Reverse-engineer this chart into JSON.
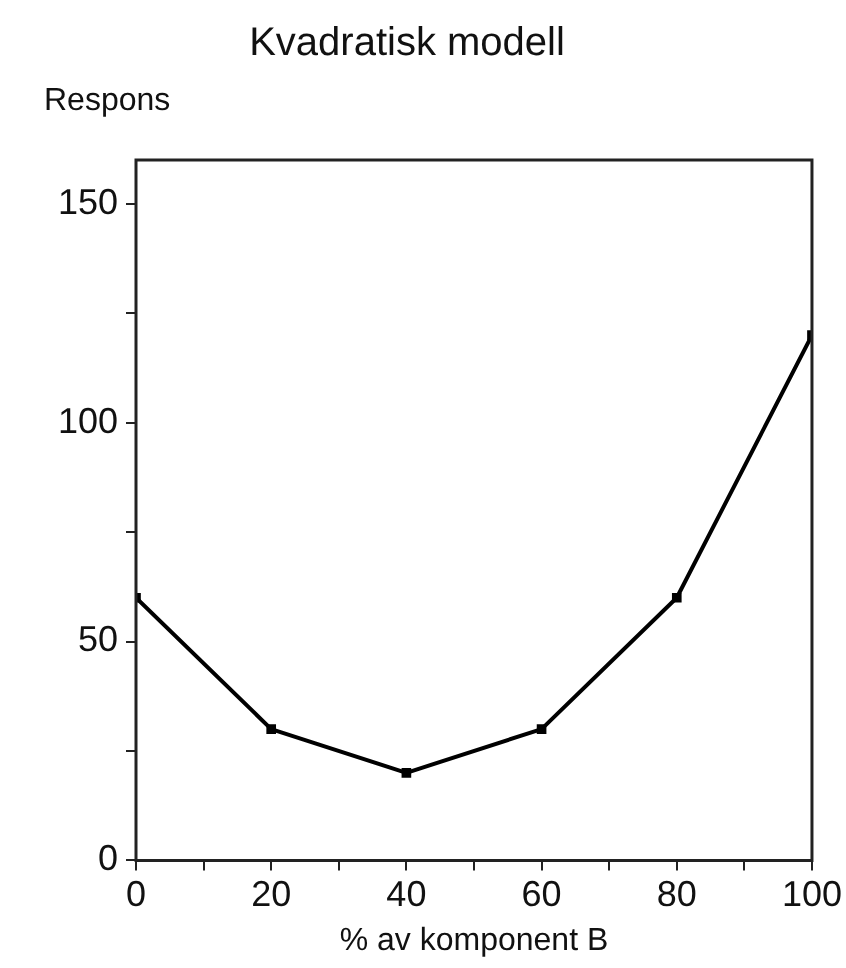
{
  "chart_data": {
    "type": "line",
    "title": "Kvadratisk modell",
    "xlabel": "% av komponent B",
    "ylabel": "Respons",
    "x": [
      0,
      20,
      40,
      60,
      80,
      100
    ],
    "series": [
      {
        "color": "#000000",
        "values": [
          60,
          30,
          20,
          30,
          60,
          120
        ]
      }
    ],
    "xlim": [
      0,
      100
    ],
    "xticks": [
      0,
      {
        "value": 10,
        "label": null
      },
      20,
      {
        "value": 30,
        "label": null
      },
      40,
      {
        "value": 50,
        "label": null
      },
      60,
      {
        "value": 70,
        "label": null
      },
      80,
      {
        "value": 90,
        "label": null
      },
      100
    ],
    "ylim": [
      0,
      160
    ],
    "yticks": [
      0,
      {
        "value": 25,
        "label": null
      },
      50,
      {
        "value": 75,
        "label": null
      },
      100,
      {
        "value": 125,
        "label": null
      },
      150
    ],
    "grid": false,
    "legend": false,
    "marker": "square",
    "line_style": "solid"
  }
}
